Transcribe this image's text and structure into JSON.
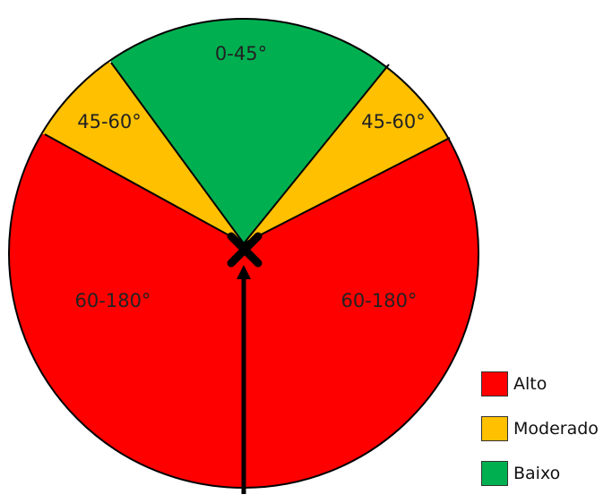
{
  "colors": {
    "alto": "#ff0000",
    "moderado": "#ffc000",
    "baixo": "#00b050",
    "outline": "#000000"
  },
  "segments": [
    {
      "label": "0-45°",
      "level": "baixo"
    },
    {
      "label": "45-60°",
      "level": "moderado"
    },
    {
      "label": "45-60°",
      "level": "moderado"
    },
    {
      "label": "60-180°",
      "level": "alto"
    },
    {
      "label": "60-180°",
      "level": "alto"
    }
  ],
  "legend": [
    {
      "label": "Alto",
      "level": "alto"
    },
    {
      "label": "Moderado",
      "level": "moderado"
    },
    {
      "label": "Baixo",
      "level": "baixo"
    }
  ],
  "icons": {
    "center": "x-mark-icon",
    "direction": "arrow-up-icon"
  }
}
